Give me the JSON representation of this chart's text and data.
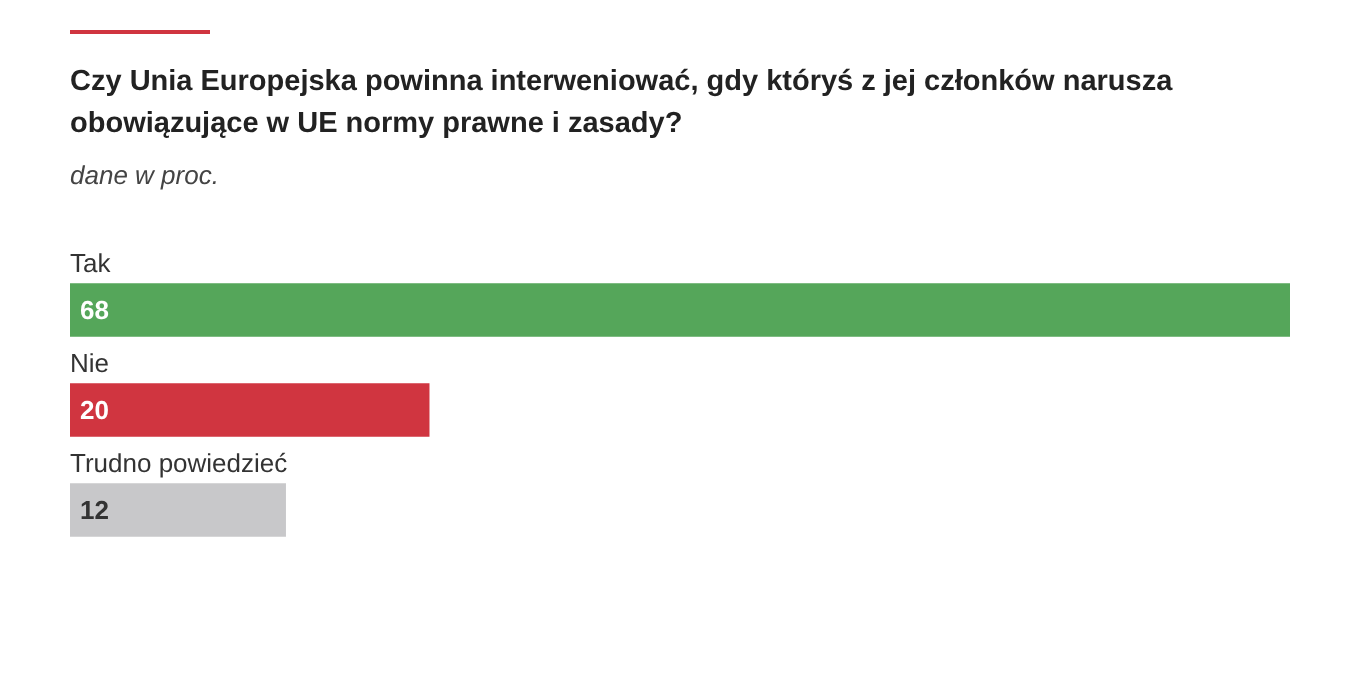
{
  "chart_data": {
    "type": "bar",
    "orientation": "horizontal",
    "title": "Czy Unia Europejska powinna interweniować, gdy któryś z jej członków narusza obowiązujące w UE normy prawne i zasady?",
    "subtitle": "dane w proc.",
    "categories": [
      "Tak",
      "Nie",
      "Trudno powiedzieć"
    ],
    "values": [
      68,
      20,
      12
    ],
    "colors": [
      "#55a65a",
      "#d03540",
      "#c8c8ca"
    ],
    "data_labels": true,
    "legend": false
  }
}
